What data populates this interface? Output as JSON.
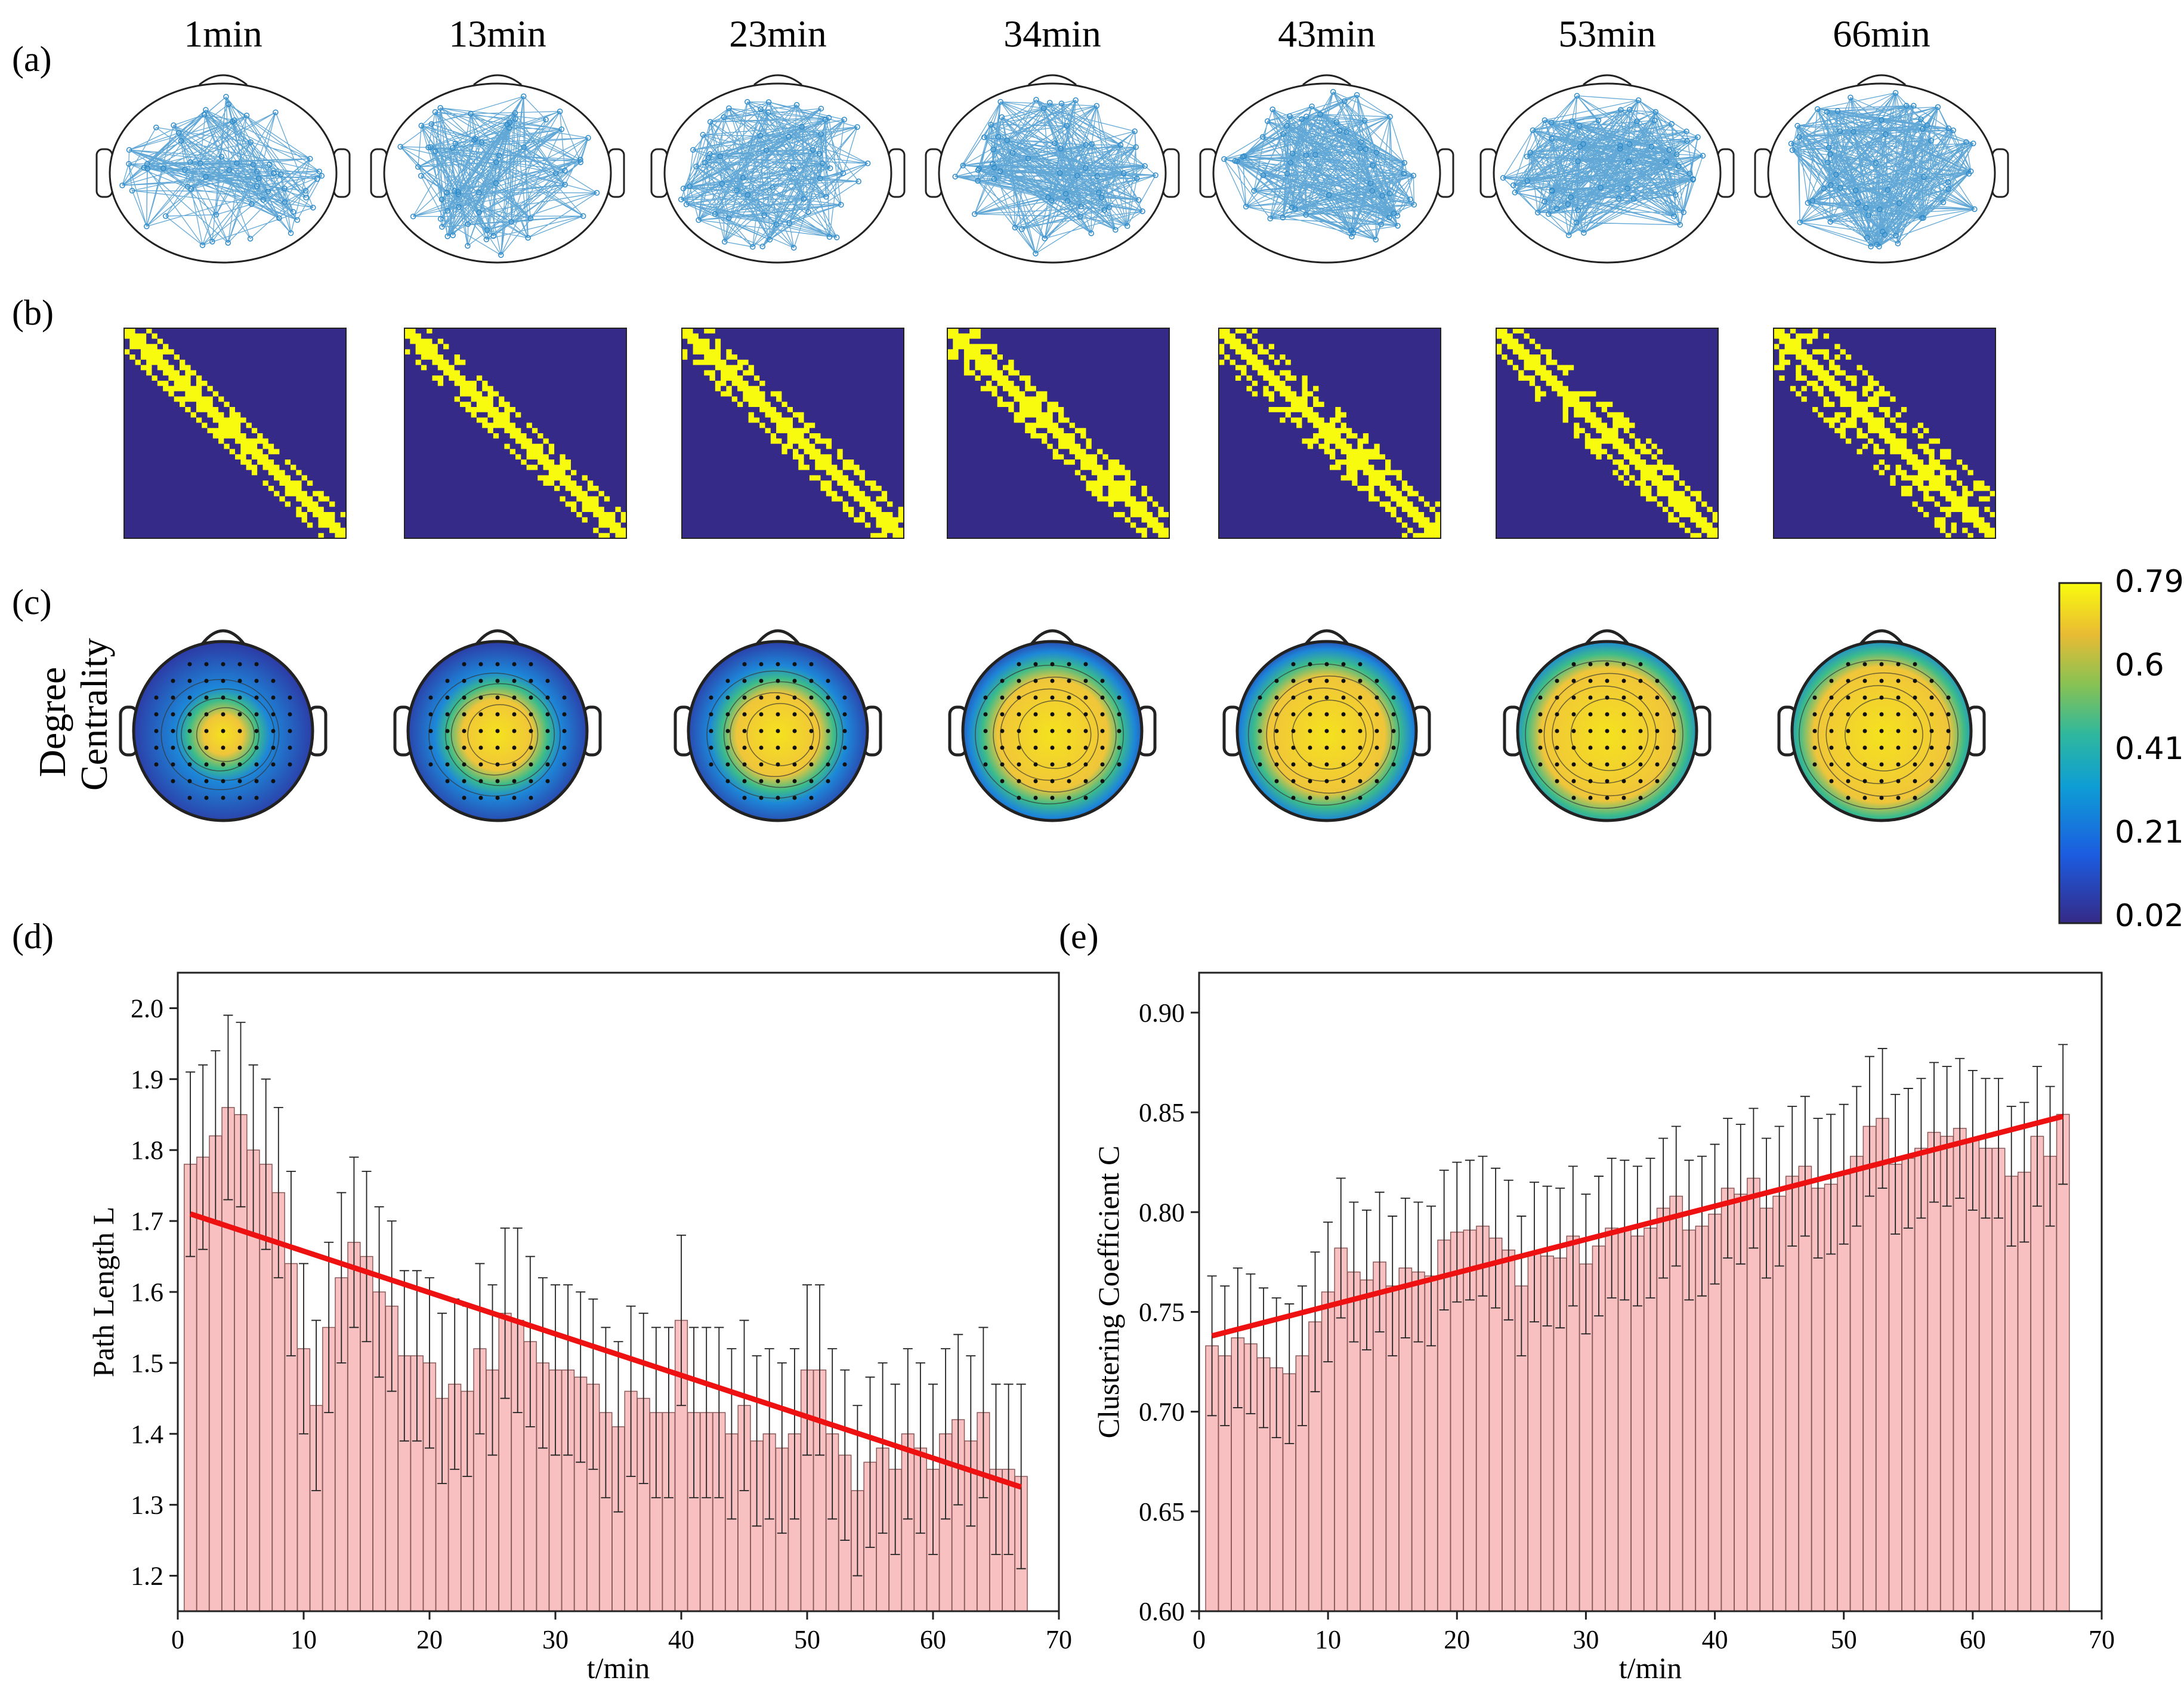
{
  "figure": {
    "panel_labels": [
      "(a)",
      "(b)",
      "(c)",
      "(d)",
      "(e)"
    ],
    "time_points": [
      "1min",
      "13min",
      "23min",
      "34min",
      "43min",
      "53min",
      "66min"
    ],
    "panel_c": {
      "ylabel_line1": "Degree",
      "ylabel_line2": "Centrality",
      "colorbar_ticks": [
        "0.79",
        "0.6",
        "0.41",
        "0.21",
        "0.02"
      ],
      "yellow_fraction": [
        0.25,
        0.45,
        0.52,
        0.7,
        0.74,
        0.84,
        0.86
      ]
    },
    "colors": {
      "edge_blue": "#2e8bc9",
      "matrix_bg": "#352a87",
      "matrix_on": "#f9fb0e",
      "bar_fill": "#f8c0c0",
      "fit_line": "#ee1111"
    }
  },
  "chart_data": [
    {
      "type": "bar",
      "id": "d",
      "xlabel": "t/min",
      "ylabel": "Path Length L",
      "xlim": [
        0,
        70
      ],
      "ylim": [
        1.15,
        2.05
      ],
      "xticks": [
        0,
        10,
        20,
        30,
        40,
        50,
        60,
        70
      ],
      "yticks": [
        1.2,
        1.3,
        1.4,
        1.5,
        1.6,
        1.7,
        1.8,
        1.9,
        2.0
      ],
      "x": [
        1,
        2,
        3,
        4,
        5,
        6,
        7,
        8,
        9,
        10,
        11,
        12,
        13,
        14,
        15,
        16,
        17,
        18,
        19,
        20,
        21,
        22,
        23,
        24,
        25,
        26,
        27,
        28,
        29,
        30,
        31,
        32,
        33,
        34,
        35,
        36,
        37,
        38,
        39,
        40,
        41,
        42,
        43,
        44,
        45,
        46,
        47,
        48,
        49,
        50,
        51,
        52,
        53,
        54,
        55,
        56,
        57,
        58,
        59,
        60,
        61,
        62,
        63,
        64,
        65,
        66,
        67
      ],
      "values": [
        1.78,
        1.79,
        1.82,
        1.86,
        1.85,
        1.8,
        1.78,
        1.74,
        1.64,
        1.52,
        1.44,
        1.55,
        1.62,
        1.67,
        1.65,
        1.6,
        1.58,
        1.51,
        1.51,
        1.5,
        1.45,
        1.47,
        1.46,
        1.52,
        1.49,
        1.57,
        1.56,
        1.53,
        1.5,
        1.49,
        1.49,
        1.48,
        1.47,
        1.43,
        1.41,
        1.46,
        1.45,
        1.43,
        1.43,
        1.56,
        1.43,
        1.43,
        1.43,
        1.4,
        1.44,
        1.39,
        1.4,
        1.38,
        1.4,
        1.49,
        1.49,
        1.4,
        1.37,
        1.32,
        1.36,
        1.38,
        1.35,
        1.4,
        1.38,
        1.35,
        1.4,
        1.42,
        1.39,
        1.43,
        1.35,
        1.35,
        1.34
      ],
      "errors": [
        0.13,
        0.13,
        0.12,
        0.13,
        0.13,
        0.12,
        0.12,
        0.12,
        0.13,
        0.12,
        0.12,
        0.12,
        0.12,
        0.12,
        0.12,
        0.12,
        0.12,
        0.12,
        0.12,
        0.12,
        0.12,
        0.12,
        0.12,
        0.12,
        0.12,
        0.12,
        0.13,
        0.12,
        0.12,
        0.12,
        0.12,
        0.12,
        0.12,
        0.12,
        0.12,
        0.12,
        0.12,
        0.12,
        0.12,
        0.12,
        0.12,
        0.12,
        0.12,
        0.12,
        0.12,
        0.12,
        0.12,
        0.12,
        0.12,
        0.12,
        0.12,
        0.12,
        0.12,
        0.12,
        0.12,
        0.12,
        0.12,
        0.12,
        0.12,
        0.12,
        0.12,
        0.12,
        0.12,
        0.12,
        0.12,
        0.12,
        0.13
      ],
      "fit": {
        "x": [
          1,
          67
        ],
        "y": [
          1.71,
          1.325
        ]
      }
    },
    {
      "type": "bar",
      "id": "e",
      "xlabel": "t/min",
      "ylabel": "Clustering Coefficient C",
      "xlim": [
        0,
        70
      ],
      "ylim": [
        0.6,
        0.92
      ],
      "xticks": [
        0,
        10,
        20,
        30,
        40,
        50,
        60,
        70
      ],
      "yticks": [
        0.6,
        0.65,
        0.7,
        0.75,
        0.8,
        0.85,
        0.9
      ],
      "x": [
        1,
        2,
        3,
        4,
        5,
        6,
        7,
        8,
        9,
        10,
        11,
        12,
        13,
        14,
        15,
        16,
        17,
        18,
        19,
        20,
        21,
        22,
        23,
        24,
        25,
        26,
        27,
        28,
        29,
        30,
        31,
        32,
        33,
        34,
        35,
        36,
        37,
        38,
        39,
        40,
        41,
        42,
        43,
        44,
        45,
        46,
        47,
        48,
        49,
        50,
        51,
        52,
        53,
        54,
        55,
        56,
        57,
        58,
        59,
        60,
        61,
        62,
        63,
        64,
        65,
        66,
        67
      ],
      "values": [
        0.733,
        0.728,
        0.737,
        0.734,
        0.727,
        0.722,
        0.719,
        0.728,
        0.745,
        0.76,
        0.782,
        0.77,
        0.766,
        0.775,
        0.763,
        0.772,
        0.77,
        0.768,
        0.786,
        0.79,
        0.791,
        0.793,
        0.787,
        0.781,
        0.763,
        0.78,
        0.778,
        0.777,
        0.788,
        0.774,
        0.783,
        0.792,
        0.791,
        0.788,
        0.792,
        0.802,
        0.808,
        0.791,
        0.793,
        0.799,
        0.812,
        0.809,
        0.817,
        0.802,
        0.808,
        0.818,
        0.823,
        0.812,
        0.814,
        0.819,
        0.828,
        0.843,
        0.847,
        0.824,
        0.827,
        0.832,
        0.84,
        0.838,
        0.842,
        0.836,
        0.832,
        0.832,
        0.818,
        0.82,
        0.838,
        0.828,
        0.849
      ],
      "errors": [
        0.035,
        0.035,
        0.035,
        0.035,
        0.035,
        0.035,
        0.035,
        0.035,
        0.035,
        0.035,
        0.035,
        0.035,
        0.035,
        0.035,
        0.035,
        0.035,
        0.035,
        0.035,
        0.035,
        0.035,
        0.035,
        0.035,
        0.035,
        0.035,
        0.035,
        0.035,
        0.035,
        0.035,
        0.035,
        0.035,
        0.035,
        0.035,
        0.035,
        0.035,
        0.035,
        0.035,
        0.035,
        0.035,
        0.035,
        0.035,
        0.035,
        0.035,
        0.035,
        0.035,
        0.035,
        0.035,
        0.035,
        0.035,
        0.035,
        0.035,
        0.035,
        0.035,
        0.035,
        0.035,
        0.035,
        0.035,
        0.035,
        0.035,
        0.035,
        0.035,
        0.035,
        0.035,
        0.035,
        0.035,
        0.035,
        0.035,
        0.035
      ],
      "fit": {
        "x": [
          1,
          67
        ],
        "y": [
          0.738,
          0.848
        ]
      }
    }
  ]
}
